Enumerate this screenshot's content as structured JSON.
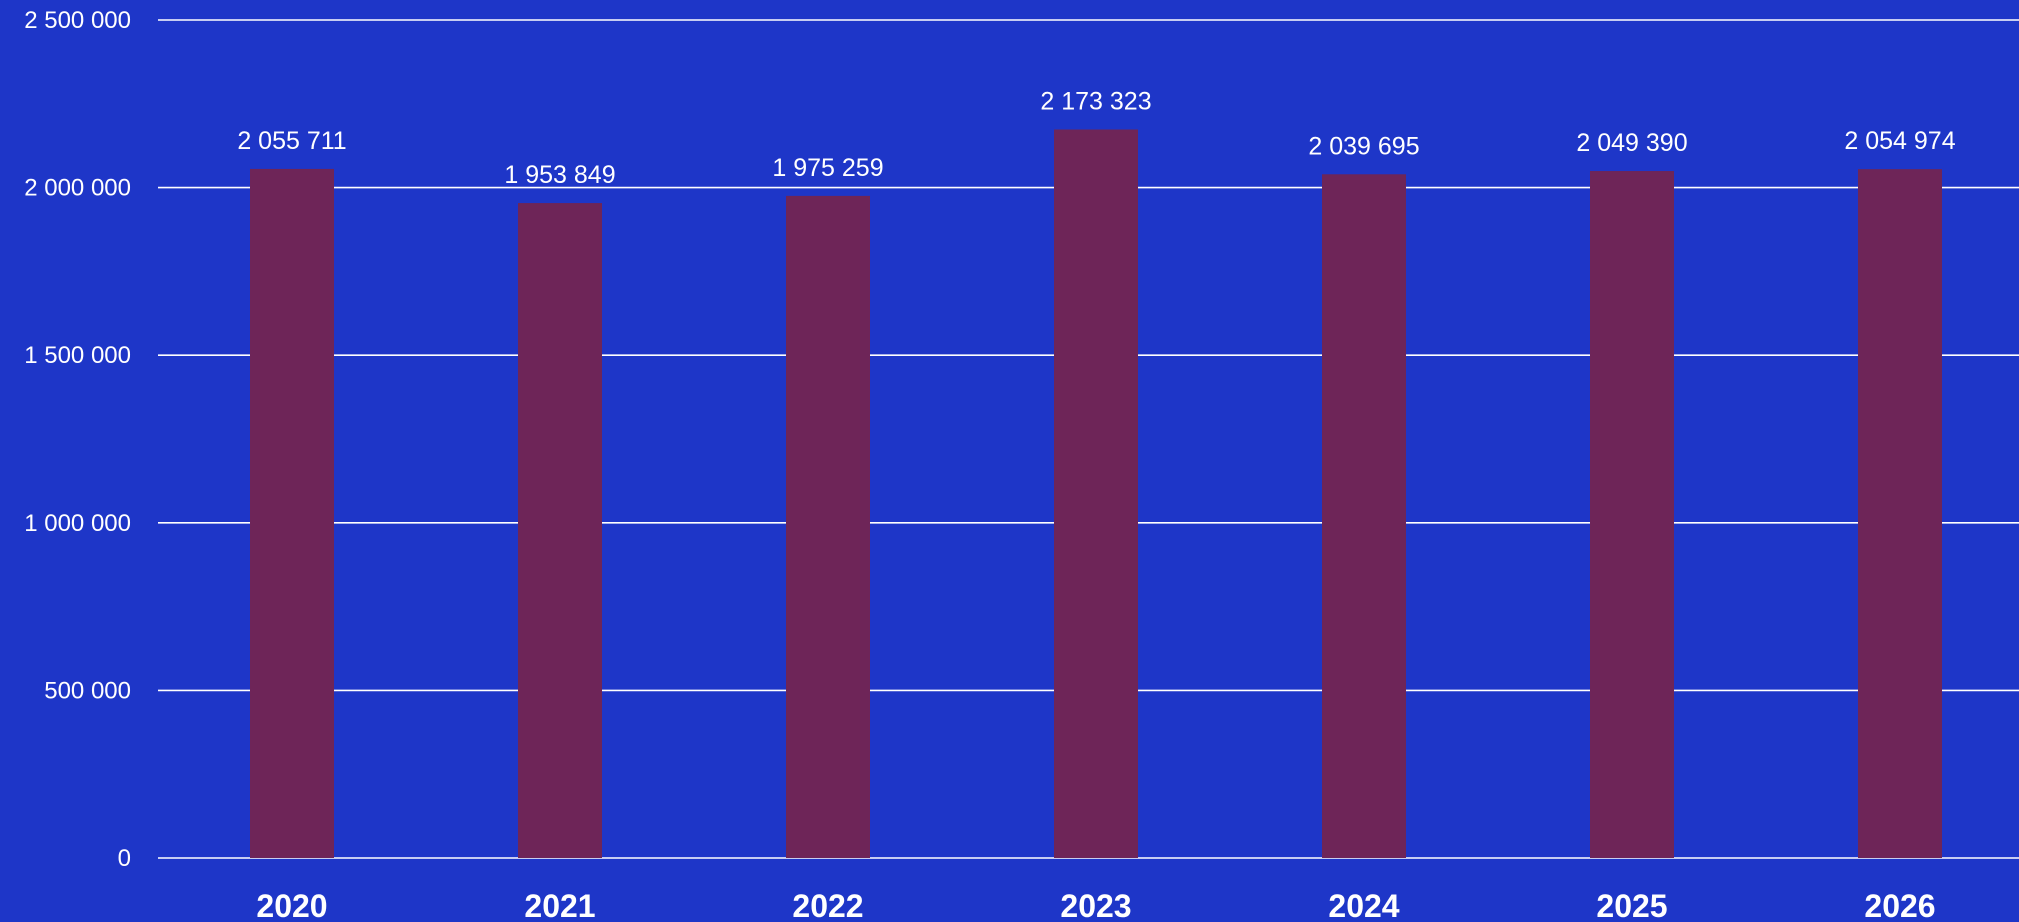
{
  "colors": {
    "background": "#1e36c8",
    "bar": "#6e2558",
    "text": "#ffffff",
    "grid": "#ffffff"
  },
  "chart_data": {
    "type": "bar",
    "categories": [
      "2020",
      "2021",
      "2022",
      "2023",
      "2024",
      "2025",
      "2026"
    ],
    "values": [
      2055711,
      1953849,
      1975259,
      2173323,
      2039695,
      2049390,
      2054974
    ],
    "data_labels": [
      "2 055 711",
      "1 953 849",
      "1 975 259",
      "2 173 323",
      "2 039 695",
      "2 049 390",
      "2 054 974"
    ],
    "yticks": [
      0,
      500000,
      1000000,
      1500000,
      2000000,
      2500000
    ],
    "ytick_labels": [
      "0",
      "500 000",
      "1 000 000",
      "1 500 000",
      "2 000 000",
      "2 500 000"
    ],
    "ylim": [
      0,
      2500000
    ],
    "grid": true,
    "legend": false
  }
}
